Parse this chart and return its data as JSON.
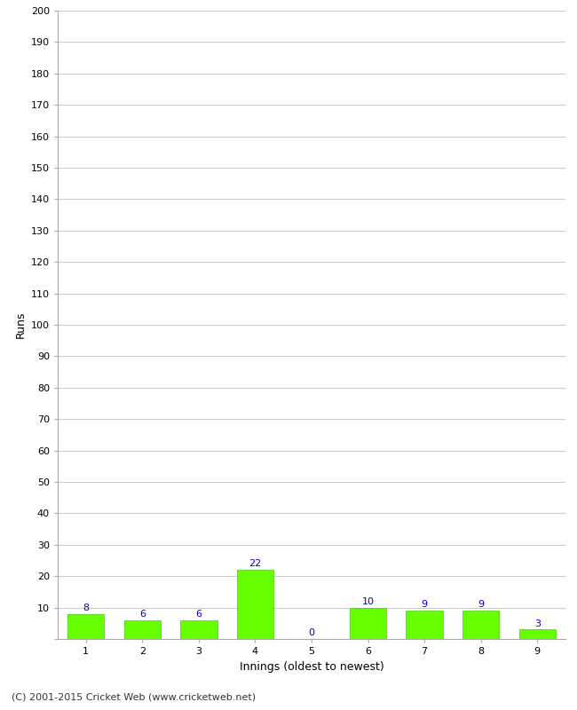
{
  "xlabel": "Innings (oldest to newest)",
  "ylabel": "Runs",
  "categories": [
    "1",
    "2",
    "3",
    "4",
    "5",
    "6",
    "7",
    "8",
    "9"
  ],
  "values": [
    8,
    6,
    6,
    22,
    0,
    10,
    9,
    9,
    3
  ],
  "bar_color": "#66ff00",
  "bar_edge_color": "#44cc00",
  "label_color": "#0000cc",
  "ylim": [
    0,
    200
  ],
  "yticks": [
    0,
    10,
    20,
    30,
    40,
    50,
    60,
    70,
    80,
    90,
    100,
    110,
    120,
    130,
    140,
    150,
    160,
    170,
    180,
    190,
    200
  ],
  "background_color": "#ffffff",
  "grid_color": "#cccccc",
  "footer": "(C) 2001-2015 Cricket Web (www.cricketweb.net)",
  "label_fontsize": 8,
  "axis_label_fontsize": 9,
  "tick_fontsize": 8,
  "footer_fontsize": 8
}
